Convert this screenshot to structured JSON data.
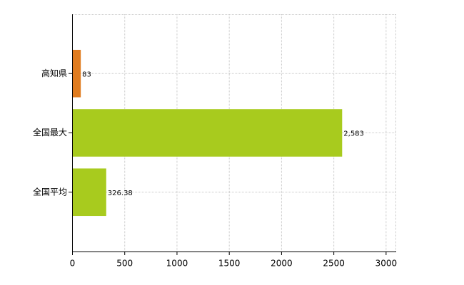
{
  "chart_data": {
    "type": "hbar",
    "categories": [
      "高知県",
      "全国最大",
      "全国平均"
    ],
    "values": [
      83,
      2583,
      326.38
    ],
    "value_labels": [
      "83",
      "2,583",
      "326.38"
    ],
    "colors": [
      "#e07b1e",
      "#a8cb1e",
      "#a8cb1e"
    ],
    "xlim": [
      0,
      3100
    ],
    "xticks": [
      0,
      500,
      1000,
      1500,
      2000,
      2500,
      3000
    ],
    "grid": true
  }
}
